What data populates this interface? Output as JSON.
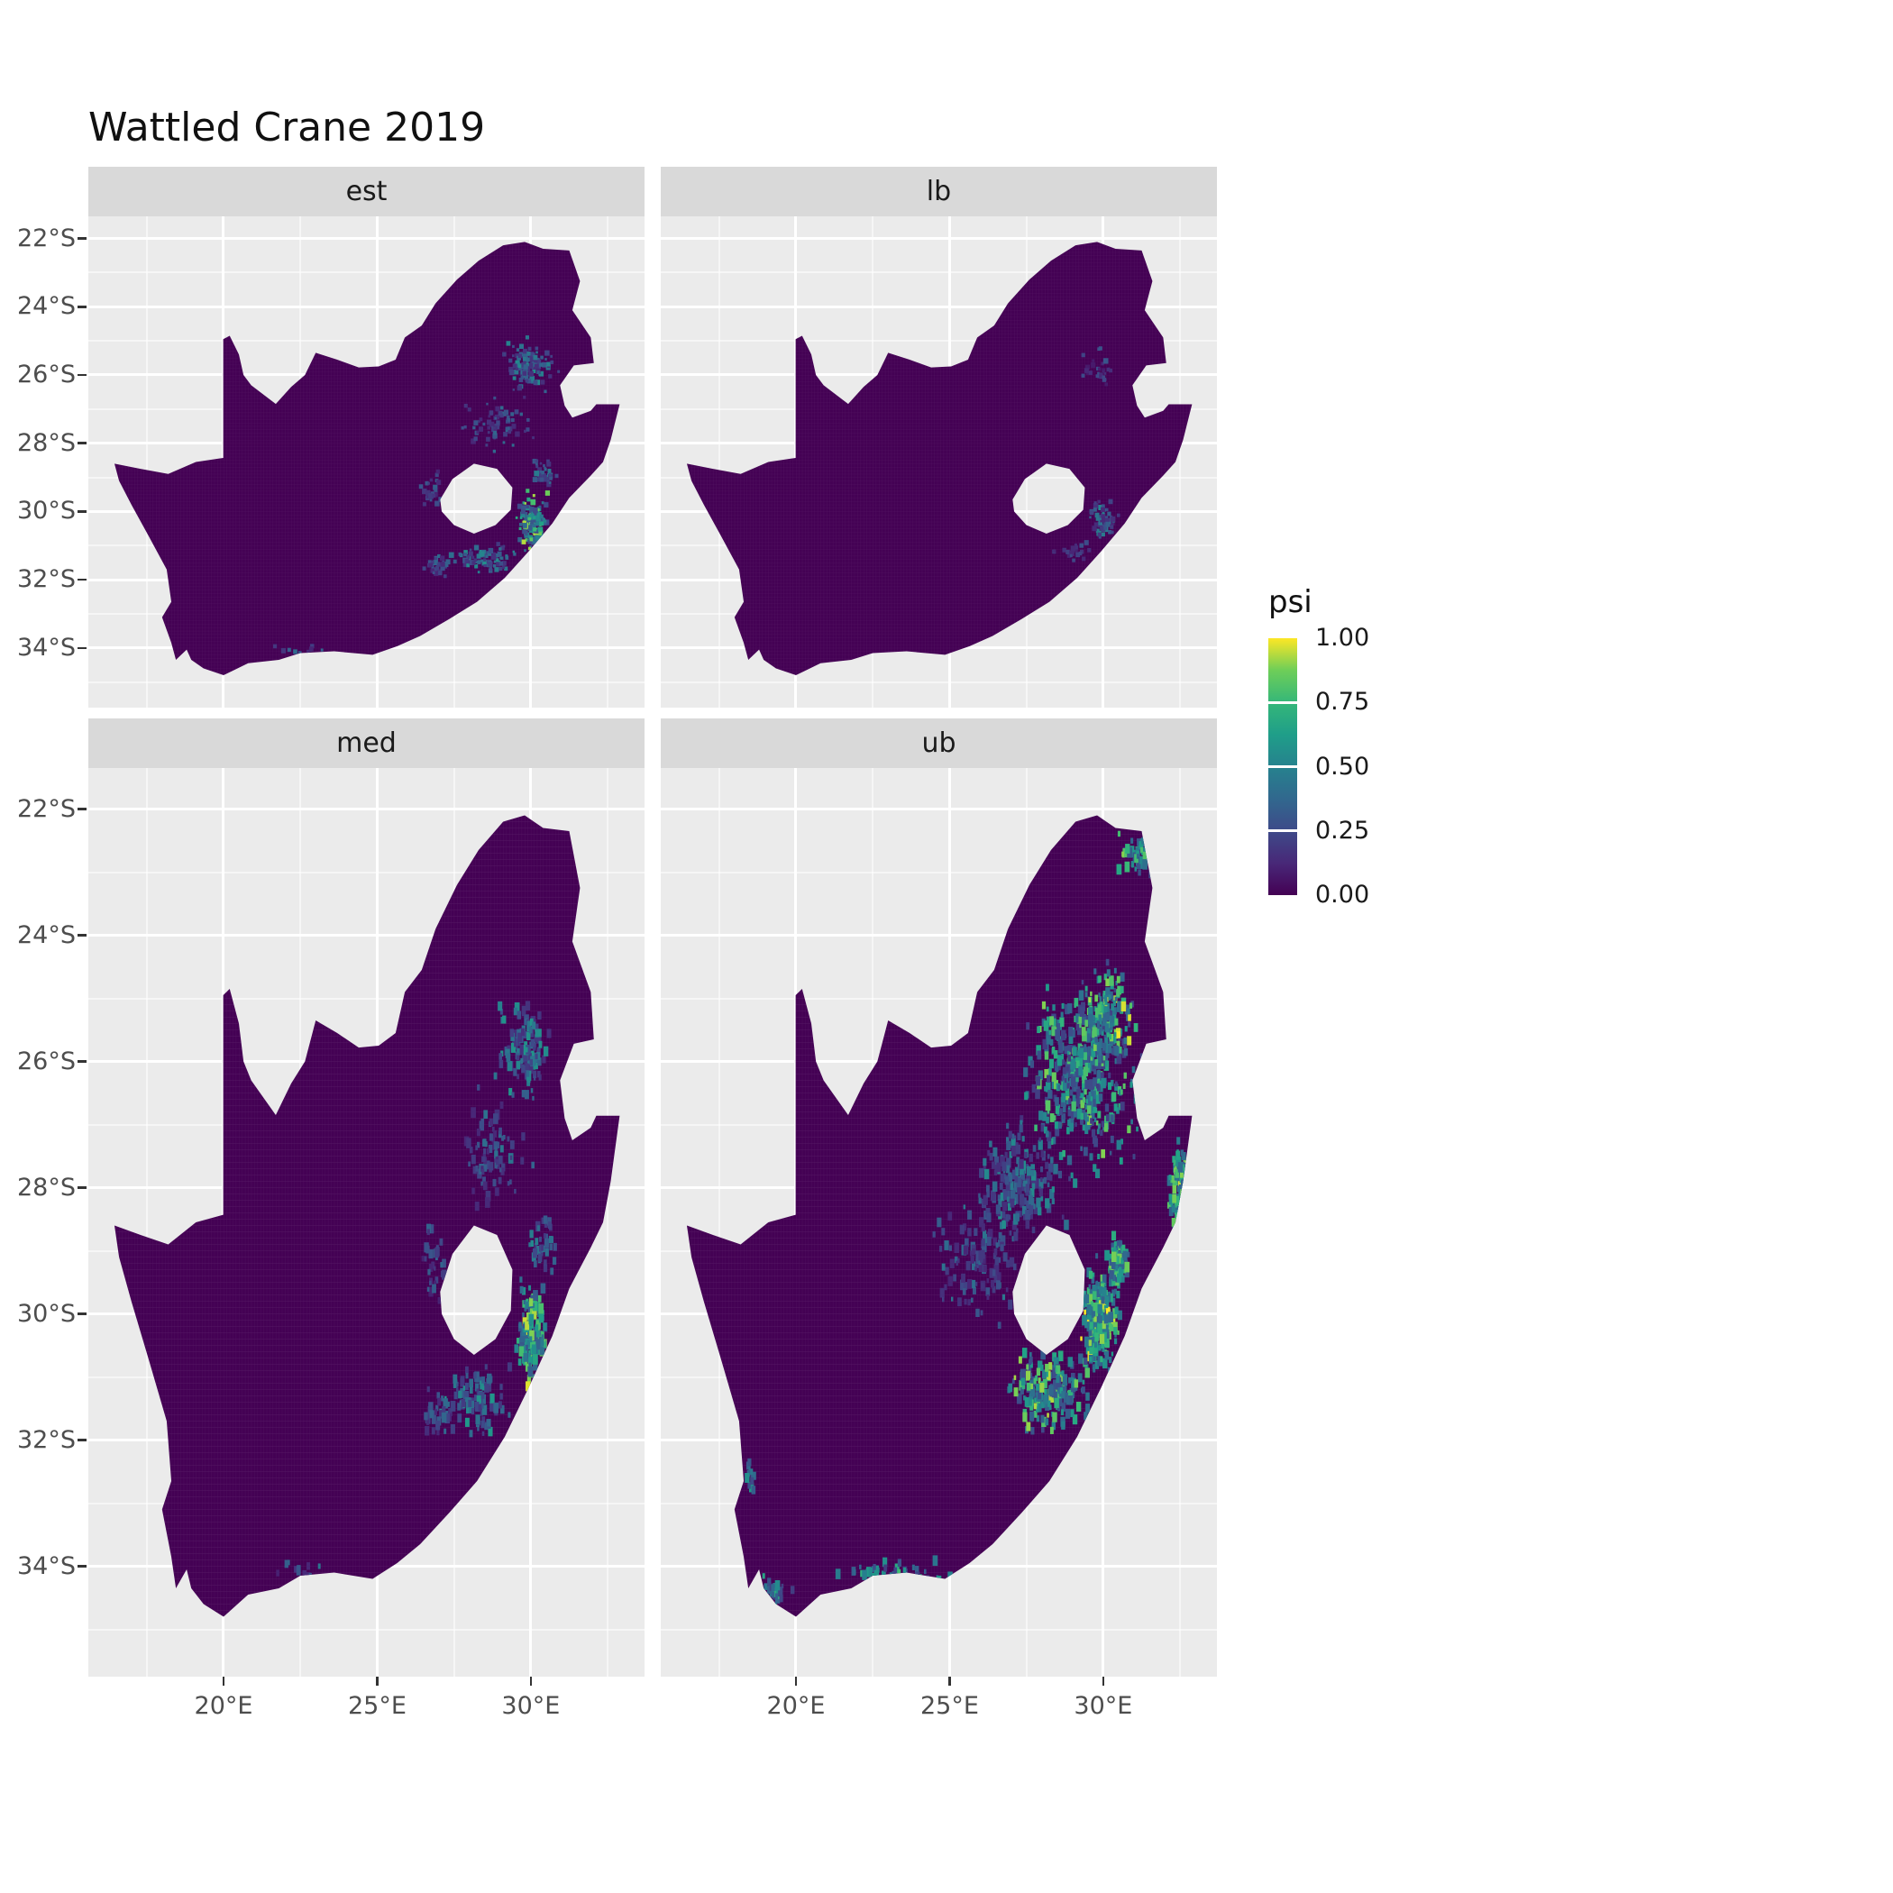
{
  "title": "Wattled Crane 2019",
  "legend": {
    "title": "psi",
    "labels": [
      "1.00",
      "0.75",
      "0.50",
      "0.25",
      "0.00"
    ]
  },
  "chart_data": {
    "type": "heatmap",
    "title": "Wattled Crane 2019",
    "subtitle": "",
    "facets": [
      "est",
      "lb",
      "med",
      "ub"
    ],
    "variable": "psi",
    "region": "South Africa",
    "x_axis": {
      "breaks": [
        20,
        25,
        30
      ],
      "labels": [
        "20°E",
        "25°E",
        "30°E"
      ],
      "minor_breaks": [
        17.5,
        22.5,
        27.5,
        32.5
      ],
      "range": [
        15.6,
        33.7
      ]
    },
    "y_axis": {
      "breaks": [
        22,
        24,
        26,
        28,
        30,
        32,
        34
      ],
      "labels": [
        "22°S",
        "24°S",
        "26°S",
        "28°S",
        "30°S",
        "32°S",
        "34°S"
      ],
      "minor_breaks": [
        23,
        25,
        27,
        29,
        31,
        33,
        35
      ],
      "range": [
        21.35,
        35.75
      ]
    },
    "legend": {
      "title": "psi",
      "breaks": [
        1.0,
        0.75,
        0.5,
        0.25,
        0.0
      ],
      "labels": [
        "1.00",
        "0.75",
        "0.50",
        "0.25",
        "0.00"
      ],
      "range": [
        0,
        1
      ],
      "position": "right"
    },
    "colors": {
      "panel_bg": "#ebebeb",
      "strip_bg": "#d9d9d9",
      "grid": "#ffffff",
      "base": "#440154",
      "axis_text": "#4d4d4d",
      "viridis_stops": [
        "#440154",
        "#482878",
        "#3e4a89",
        "#31688e",
        "#26828e",
        "#1f9e89",
        "#35b779",
        "#6ece58",
        "#fde725"
      ]
    },
    "map": {
      "region": "South Africa (Lesotho shown as hole, Eswatini as notch)",
      "outline": [
        [
          16.45,
          28.6
        ],
        [
          17.3,
          28.75
        ],
        [
          18.2,
          28.9
        ],
        [
          19.1,
          28.55
        ],
        [
          19.99,
          28.43
        ],
        [
          19.99,
          24.95
        ],
        [
          20.2,
          24.85
        ],
        [
          20.5,
          25.4
        ],
        [
          20.65,
          26.0
        ],
        [
          20.9,
          26.3
        ],
        [
          21.7,
          26.85
        ],
        [
          22.2,
          26.35
        ],
        [
          22.65,
          26.0
        ],
        [
          23.0,
          25.35
        ],
        [
          23.7,
          25.55
        ],
        [
          24.4,
          25.78
        ],
        [
          25.05,
          25.75
        ],
        [
          25.6,
          25.55
        ],
        [
          25.9,
          24.9
        ],
        [
          26.45,
          24.55
        ],
        [
          26.9,
          23.9
        ],
        [
          27.6,
          23.2
        ],
        [
          28.3,
          22.65
        ],
        [
          29.1,
          22.2
        ],
        [
          29.8,
          22.1
        ],
        [
          30.4,
          22.3
        ],
        [
          31.25,
          22.35
        ],
        [
          31.6,
          23.25
        ],
        [
          31.35,
          24.1
        ],
        [
          31.95,
          24.9
        ],
        [
          32.05,
          25.65
        ],
        [
          31.4,
          25.72
        ],
        [
          30.95,
          26.3
        ],
        [
          31.1,
          26.9
        ],
        [
          31.35,
          27.25
        ],
        [
          31.95,
          27.05
        ],
        [
          32.13,
          26.86
        ],
        [
          32.89,
          26.86
        ],
        [
          32.6,
          27.9
        ],
        [
          32.35,
          28.55
        ],
        [
          31.95,
          28.95
        ],
        [
          31.25,
          29.6
        ],
        [
          30.7,
          30.35
        ],
        [
          29.95,
          31.15
        ],
        [
          29.15,
          31.95
        ],
        [
          28.25,
          32.65
        ],
        [
          27.35,
          33.15
        ],
        [
          26.4,
          33.65
        ],
        [
          25.65,
          33.95
        ],
        [
          24.85,
          34.2
        ],
        [
          23.6,
          34.1
        ],
        [
          22.5,
          34.15
        ],
        [
          21.8,
          34.35
        ],
        [
          20.8,
          34.45
        ],
        [
          20.0,
          34.8
        ],
        [
          19.35,
          34.6
        ],
        [
          18.95,
          34.35
        ],
        [
          18.8,
          34.05
        ],
        [
          18.45,
          34.35
        ],
        [
          18.3,
          33.85
        ],
        [
          18.0,
          33.1
        ],
        [
          18.3,
          32.65
        ],
        [
          18.15,
          31.7
        ],
        [
          17.55,
          30.7
        ],
        [
          17.0,
          29.8
        ],
        [
          16.6,
          29.1
        ]
      ],
      "hole": [
        [
          27.05,
          29.65
        ],
        [
          27.45,
          29.05
        ],
        [
          28.15,
          28.6
        ],
        [
          28.9,
          28.75
        ],
        [
          29.4,
          29.3
        ],
        [
          29.35,
          29.95
        ],
        [
          28.85,
          30.4
        ],
        [
          28.15,
          30.65
        ],
        [
          27.5,
          30.4
        ],
        [
          27.1,
          30.0
        ]
      ]
    },
    "facet_hotspots": {
      "est": [
        {
          "lon": 29.9,
          "lat": 25.7,
          "rx": 1.1,
          "ry": 0.9,
          "n": 110,
          "vmin": 0.15,
          "vmax": 0.55
        },
        {
          "lon": 28.9,
          "lat": 27.5,
          "rx": 1.3,
          "ry": 1.0,
          "n": 70,
          "vmin": 0.12,
          "vmax": 0.4
        },
        {
          "lon": 30.05,
          "lat": 30.3,
          "rx": 0.65,
          "ry": 1.0,
          "n": 150,
          "vmin": 0.25,
          "vmax": 0.95
        },
        {
          "lon": 28.5,
          "lat": 31.4,
          "rx": 1.3,
          "ry": 0.6,
          "n": 80,
          "vmin": 0.15,
          "vmax": 0.55
        },
        {
          "lon": 26.9,
          "lat": 31.6,
          "rx": 0.8,
          "ry": 0.4,
          "n": 30,
          "vmin": 0.12,
          "vmax": 0.4
        },
        {
          "lon": 30.4,
          "lat": 28.9,
          "rx": 0.5,
          "ry": 0.6,
          "n": 40,
          "vmin": 0.15,
          "vmax": 0.5
        },
        {
          "lon": 26.8,
          "lat": 29.3,
          "rx": 0.5,
          "ry": 0.8,
          "n": 25,
          "vmin": 0.1,
          "vmax": 0.35
        },
        {
          "lon": 22.5,
          "lat": 34.05,
          "rx": 1.3,
          "ry": 0.25,
          "n": 10,
          "vmin": 0.1,
          "vmax": 0.4
        }
      ],
      "lb": [
        {
          "lon": 29.9,
          "lat": 25.8,
          "rx": 0.9,
          "ry": 0.7,
          "n": 30,
          "vmin": 0.08,
          "vmax": 0.3
        },
        {
          "lon": 30.0,
          "lat": 30.3,
          "rx": 0.55,
          "ry": 0.8,
          "n": 60,
          "vmin": 0.12,
          "vmax": 0.55
        },
        {
          "lon": 29.0,
          "lat": 31.2,
          "rx": 0.8,
          "ry": 0.5,
          "n": 20,
          "vmin": 0.1,
          "vmax": 0.3
        }
      ],
      "med": [
        {
          "lon": 29.8,
          "lat": 25.8,
          "rx": 1.2,
          "ry": 1.0,
          "n": 130,
          "vmin": 0.15,
          "vmax": 0.6
        },
        {
          "lon": 28.8,
          "lat": 27.5,
          "rx": 1.4,
          "ry": 1.1,
          "n": 85,
          "vmin": 0.12,
          "vmax": 0.45
        },
        {
          "lon": 30.05,
          "lat": 30.3,
          "rx": 0.7,
          "ry": 1.05,
          "n": 170,
          "vmin": 0.3,
          "vmax": 1.0
        },
        {
          "lon": 28.3,
          "lat": 31.4,
          "rx": 1.4,
          "ry": 0.7,
          "n": 95,
          "vmin": 0.18,
          "vmax": 0.6
        },
        {
          "lon": 26.9,
          "lat": 31.6,
          "rx": 0.9,
          "ry": 0.5,
          "n": 35,
          "vmin": 0.12,
          "vmax": 0.45
        },
        {
          "lon": 30.4,
          "lat": 28.9,
          "rx": 0.5,
          "ry": 0.6,
          "n": 45,
          "vmin": 0.18,
          "vmax": 0.55
        },
        {
          "lon": 26.8,
          "lat": 29.3,
          "rx": 0.5,
          "ry": 0.8,
          "n": 30,
          "vmin": 0.1,
          "vmax": 0.38
        },
        {
          "lon": 22.5,
          "lat": 34.05,
          "rx": 1.3,
          "ry": 0.25,
          "n": 14,
          "vmin": 0.1,
          "vmax": 0.45
        }
      ],
      "ub": [
        {
          "lon": 29.4,
          "lat": 26.2,
          "rx": 2.3,
          "ry": 1.9,
          "n": 500,
          "vmin": 0.2,
          "vmax": 0.9
        },
        {
          "lon": 27.3,
          "lat": 27.9,
          "rx": 2.0,
          "ry": 1.4,
          "n": 220,
          "vmin": 0.15,
          "vmax": 0.55
        },
        {
          "lon": 30.15,
          "lat": 25.2,
          "rx": 0.9,
          "ry": 0.9,
          "n": 90,
          "vmin": 0.35,
          "vmax": 1.0
        },
        {
          "lon": 29.9,
          "lat": 30.1,
          "rx": 0.8,
          "ry": 1.1,
          "n": 260,
          "vmin": 0.35,
          "vmax": 1.0
        },
        {
          "lon": 28.2,
          "lat": 31.2,
          "rx": 1.7,
          "ry": 0.9,
          "n": 200,
          "vmin": 0.25,
          "vmax": 0.95
        },
        {
          "lon": 32.5,
          "lat": 28.1,
          "rx": 0.45,
          "ry": 1.0,
          "n": 110,
          "vmin": 0.35,
          "vmax": 1.0
        },
        {
          "lon": 25.8,
          "lat": 29.2,
          "rx": 1.7,
          "ry": 1.2,
          "n": 110,
          "vmin": 0.12,
          "vmax": 0.45
        },
        {
          "lon": 23.3,
          "lat": 34.15,
          "rx": 2.2,
          "ry": 0.3,
          "n": 60,
          "vmin": 0.2,
          "vmax": 0.8
        },
        {
          "lon": 19.2,
          "lat": 34.4,
          "rx": 0.9,
          "ry": 0.4,
          "n": 30,
          "vmin": 0.2,
          "vmax": 0.7
        },
        {
          "lon": 31.1,
          "lat": 22.7,
          "rx": 0.8,
          "ry": 0.5,
          "n": 50,
          "vmin": 0.25,
          "vmax": 0.9
        },
        {
          "lon": 30.5,
          "lat": 29.2,
          "rx": 0.5,
          "ry": 0.5,
          "n": 80,
          "vmin": 0.3,
          "vmax": 0.9
        },
        {
          "lon": 18.5,
          "lat": 32.6,
          "rx": 0.3,
          "ry": 0.5,
          "n": 12,
          "vmin": 0.2,
          "vmax": 0.6
        }
      ]
    }
  }
}
